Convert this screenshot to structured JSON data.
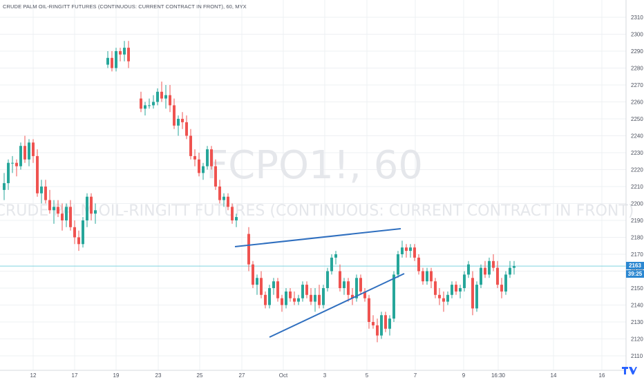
{
  "window": {
    "title": "CRUDE PALM OIL-RINGITT FUTURES (CONTINUOUS: CURRENT CONTRACT IN FRONT), 60, MYX"
  },
  "watermark": {
    "symbol": "FCPO1!, 60",
    "description": "CRUDE PALM OIL-RINGITT FUTURES (CONTINUOUS: CURRENT CONTRACT IN FRONT)"
  },
  "price_marker": {
    "price": "2163",
    "countdown": "39:25"
  },
  "colors": {
    "up": "#26a69a",
    "down": "#ef5350",
    "trendline": "#2f6fbf",
    "grid": "#eef0f3",
    "price_line": "#7fd3df",
    "price_tag": "#2b87d1"
  },
  "chart_data": {
    "type": "candlestick",
    "title": "CRUDE PALM OIL-RINGITT FUTURES (CONTINUOUS: CURRENT CONTRACT IN FRONT), 60, MYX",
    "symbol": "FCPO1!",
    "interval": "60",
    "exchange": "MYX",
    "ylim": [
      2104,
      2315
    ],
    "y_ticks": [
      2110,
      2120,
      2130,
      2140,
      2150,
      2160,
      2170,
      2180,
      2190,
      2200,
      2210,
      2220,
      2230,
      2240,
      2250,
      2260,
      2270,
      2280,
      2290,
      2300,
      2310
    ],
    "x_ticks": [
      "12",
      "17",
      "19",
      "23",
      "25",
      "27",
      "Oct",
      "3",
      "5",
      "7",
      "9",
      "16:30",
      "14",
      "16",
      "16:30"
    ],
    "last_price": 2163,
    "grid": true,
    "candles": [
      {
        "o": 2208,
        "h": 2218,
        "l": 2202,
        "c": 2212
      },
      {
        "o": 2212,
        "h": 2226,
        "l": 2208,
        "c": 2224
      },
      {
        "o": 2224,
        "h": 2228,
        "l": 2218,
        "c": 2224
      },
      {
        "o": 2224,
        "h": 2226,
        "l": 2216,
        "c": 2222
      },
      {
        "o": 2222,
        "h": 2236,
        "l": 2220,
        "c": 2234
      },
      {
        "o": 2234,
        "h": 2240,
        "l": 2224,
        "c": 2226
      },
      {
        "o": 2226,
        "h": 2238,
        "l": 2222,
        "c": 2236
      },
      {
        "o": 2236,
        "h": 2238,
        "l": 2224,
        "c": 2228
      },
      {
        "o": 2228,
        "h": 2232,
        "l": 2204,
        "c": 2206
      },
      {
        "o": 2206,
        "h": 2214,
        "l": 2200,
        "c": 2210
      },
      {
        "o": 2210,
        "h": 2214,
        "l": 2200,
        "c": 2202
      },
      {
        "o": 2202,
        "h": 2208,
        "l": 2194,
        "c": 2196
      },
      {
        "o": 2196,
        "h": 2202,
        "l": 2188,
        "c": 2198
      },
      {
        "o": 2198,
        "h": 2202,
        "l": 2192,
        "c": 2194
      },
      {
        "o": 2194,
        "h": 2200,
        "l": 2184,
        "c": 2190
      },
      {
        "o": 2190,
        "h": 2200,
        "l": 2186,
        "c": 2198
      },
      {
        "o": 2198,
        "h": 2202,
        "l": 2184,
        "c": 2186
      },
      {
        "o": 2186,
        "h": 2190,
        "l": 2176,
        "c": 2180
      },
      {
        "o": 2180,
        "h": 2184,
        "l": 2172,
        "c": 2176
      },
      {
        "o": 2176,
        "h": 2192,
        "l": 2174,
        "c": 2190
      },
      {
        "o": 2190,
        "h": 2206,
        "l": 2186,
        "c": 2204
      },
      {
        "o": 2204,
        "h": 2206,
        "l": 2190,
        "c": 2194
      },
      {
        "o": 2194,
        "h": 2200,
        "l": 2188,
        "c": 2196
      },
      {
        "o": 2282,
        "h": 2290,
        "l": 2280,
        "c": 2286
      },
      {
        "o": 2286,
        "h": 2290,
        "l": 2278,
        "c": 2280
      },
      {
        "o": 2280,
        "h": 2292,
        "l": 2278,
        "c": 2290
      },
      {
        "o": 2290,
        "h": 2292,
        "l": 2284,
        "c": 2288
      },
      {
        "o": 2288,
        "h": 2296,
        "l": 2284,
        "c": 2292
      },
      {
        "o": 2292,
        "h": 2296,
        "l": 2280,
        "c": 2284
      },
      {
        "o": 2262,
        "h": 2266,
        "l": 2254,
        "c": 2256
      },
      {
        "o": 2256,
        "h": 2260,
        "l": 2252,
        "c": 2258
      },
      {
        "o": 2258,
        "h": 2262,
        "l": 2256,
        "c": 2258
      },
      {
        "o": 2258,
        "h": 2264,
        "l": 2256,
        "c": 2260
      },
      {
        "o": 2260,
        "h": 2268,
        "l": 2258,
        "c": 2266
      },
      {
        "o": 2266,
        "h": 2272,
        "l": 2260,
        "c": 2262
      },
      {
        "o": 2262,
        "h": 2270,
        "l": 2256,
        "c": 2264
      },
      {
        "o": 2264,
        "h": 2270,
        "l": 2254,
        "c": 2258
      },
      {
        "o": 2258,
        "h": 2262,
        "l": 2244,
        "c": 2246
      },
      {
        "o": 2246,
        "h": 2252,
        "l": 2240,
        "c": 2250
      },
      {
        "o": 2250,
        "h": 2254,
        "l": 2244,
        "c": 2248
      },
      {
        "o": 2248,
        "h": 2252,
        "l": 2238,
        "c": 2240
      },
      {
        "o": 2240,
        "h": 2244,
        "l": 2226,
        "c": 2228
      },
      {
        "o": 2228,
        "h": 2232,
        "l": 2222,
        "c": 2226
      },
      {
        "o": 2226,
        "h": 2230,
        "l": 2216,
        "c": 2218
      },
      {
        "o": 2218,
        "h": 2224,
        "l": 2214,
        "c": 2222
      },
      {
        "o": 2222,
        "h": 2234,
        "l": 2220,
        "c": 2232
      },
      {
        "o": 2232,
        "h": 2234,
        "l": 2220,
        "c": 2222
      },
      {
        "o": 2222,
        "h": 2226,
        "l": 2208,
        "c": 2210
      },
      {
        "o": 2210,
        "h": 2214,
        "l": 2200,
        "c": 2202
      },
      {
        "o": 2202,
        "h": 2206,
        "l": 2198,
        "c": 2204
      },
      {
        "o": 2204,
        "h": 2206,
        "l": 2196,
        "c": 2198
      },
      {
        "o": 2198,
        "h": 2200,
        "l": 2188,
        "c": 2190
      },
      {
        "o": 2190,
        "h": 2194,
        "l": 2186,
        "c": 2192
      },
      {
        "o": 2182,
        "h": 2186,
        "l": 2160,
        "c": 2164
      },
      {
        "o": 2164,
        "h": 2166,
        "l": 2150,
        "c": 2152
      },
      {
        "o": 2152,
        "h": 2158,
        "l": 2146,
        "c": 2156
      },
      {
        "o": 2156,
        "h": 2160,
        "l": 2144,
        "c": 2146
      },
      {
        "o": 2146,
        "h": 2148,
        "l": 2138,
        "c": 2140
      },
      {
        "o": 2140,
        "h": 2152,
        "l": 2138,
        "c": 2150
      },
      {
        "o": 2150,
        "h": 2156,
        "l": 2146,
        "c": 2154
      },
      {
        "o": 2154,
        "h": 2156,
        "l": 2142,
        "c": 2144
      },
      {
        "o": 2144,
        "h": 2146,
        "l": 2136,
        "c": 2140
      },
      {
        "o": 2140,
        "h": 2150,
        "l": 2138,
        "c": 2148
      },
      {
        "o": 2148,
        "h": 2150,
        "l": 2142,
        "c": 2144
      },
      {
        "o": 2144,
        "h": 2148,
        "l": 2140,
        "c": 2142
      },
      {
        "o": 2142,
        "h": 2146,
        "l": 2140,
        "c": 2144
      },
      {
        "o": 2144,
        "h": 2154,
        "l": 2142,
        "c": 2152
      },
      {
        "o": 2152,
        "h": 2154,
        "l": 2144,
        "c": 2146
      },
      {
        "o": 2146,
        "h": 2150,
        "l": 2140,
        "c": 2142
      },
      {
        "o": 2142,
        "h": 2150,
        "l": 2136,
        "c": 2146
      },
      {
        "o": 2146,
        "h": 2152,
        "l": 2138,
        "c": 2140
      },
      {
        "o": 2140,
        "h": 2152,
        "l": 2138,
        "c": 2150
      },
      {
        "o": 2150,
        "h": 2162,
        "l": 2148,
        "c": 2160
      },
      {
        "o": 2160,
        "h": 2170,
        "l": 2158,
        "c": 2168
      },
      {
        "o": 2168,
        "h": 2172,
        "l": 2164,
        "c": 2170
      },
      {
        "o": 2160,
        "h": 2164,
        "l": 2148,
        "c": 2150
      },
      {
        "o": 2150,
        "h": 2156,
        "l": 2146,
        "c": 2154
      },
      {
        "o": 2154,
        "h": 2156,
        "l": 2142,
        "c": 2146
      },
      {
        "o": 2146,
        "h": 2150,
        "l": 2140,
        "c": 2144
      },
      {
        "o": 2144,
        "h": 2158,
        "l": 2142,
        "c": 2156
      },
      {
        "o": 2156,
        "h": 2158,
        "l": 2146,
        "c": 2148
      },
      {
        "o": 2148,
        "h": 2150,
        "l": 2142,
        "c": 2144
      },
      {
        "o": 2144,
        "h": 2146,
        "l": 2126,
        "c": 2130
      },
      {
        "o": 2130,
        "h": 2134,
        "l": 2126,
        "c": 2128
      },
      {
        "o": 2128,
        "h": 2132,
        "l": 2118,
        "c": 2122
      },
      {
        "o": 2122,
        "h": 2136,
        "l": 2120,
        "c": 2134
      },
      {
        "o": 2134,
        "h": 2136,
        "l": 2124,
        "c": 2126
      },
      {
        "o": 2126,
        "h": 2134,
        "l": 2122,
        "c": 2132
      },
      {
        "o": 2132,
        "h": 2160,
        "l": 2130,
        "c": 2158
      },
      {
        "o": 2158,
        "h": 2172,
        "l": 2156,
        "c": 2170
      },
      {
        "o": 2170,
        "h": 2178,
        "l": 2168,
        "c": 2174
      },
      {
        "o": 2174,
        "h": 2176,
        "l": 2168,
        "c": 2172
      },
      {
        "o": 2172,
        "h": 2176,
        "l": 2168,
        "c": 2174
      },
      {
        "o": 2174,
        "h": 2176,
        "l": 2166,
        "c": 2168
      },
      {
        "o": 2168,
        "h": 2170,
        "l": 2158,
        "c": 2160
      },
      {
        "o": 2160,
        "h": 2162,
        "l": 2152,
        "c": 2154
      },
      {
        "o": 2154,
        "h": 2162,
        "l": 2152,
        "c": 2160
      },
      {
        "o": 2160,
        "h": 2162,
        "l": 2150,
        "c": 2154
      },
      {
        "o": 2154,
        "h": 2156,
        "l": 2144,
        "c": 2146
      },
      {
        "o": 2146,
        "h": 2150,
        "l": 2140,
        "c": 2144
      },
      {
        "o": 2144,
        "h": 2148,
        "l": 2136,
        "c": 2142
      },
      {
        "o": 2142,
        "h": 2148,
        "l": 2140,
        "c": 2146
      },
      {
        "o": 2146,
        "h": 2154,
        "l": 2144,
        "c": 2152
      },
      {
        "o": 2152,
        "h": 2154,
        "l": 2146,
        "c": 2148
      },
      {
        "o": 2148,
        "h": 2152,
        "l": 2144,
        "c": 2150
      },
      {
        "o": 2150,
        "h": 2160,
        "l": 2148,
        "c": 2158
      },
      {
        "o": 2158,
        "h": 2166,
        "l": 2156,
        "c": 2164
      },
      {
        "o": 2156,
        "h": 2160,
        "l": 2134,
        "c": 2138
      },
      {
        "o": 2138,
        "h": 2154,
        "l": 2136,
        "c": 2152
      },
      {
        "o": 2152,
        "h": 2164,
        "l": 2150,
        "c": 2162
      },
      {
        "o": 2162,
        "h": 2166,
        "l": 2156,
        "c": 2158
      },
      {
        "o": 2158,
        "h": 2168,
        "l": 2156,
        "c": 2166
      },
      {
        "o": 2166,
        "h": 2170,
        "l": 2160,
        "c": 2162
      },
      {
        "o": 2162,
        "h": 2166,
        "l": 2150,
        "c": 2152
      },
      {
        "o": 2152,
        "h": 2156,
        "l": 2144,
        "c": 2148
      },
      {
        "o": 2148,
        "h": 2160,
        "l": 2146,
        "c": 2158
      },
      {
        "o": 2158,
        "h": 2166,
        "l": 2156,
        "c": 2162
      },
      {
        "o": 2162,
        "h": 2166,
        "l": 2158,
        "c": 2163
      }
    ],
    "annotations": [
      {
        "type": "trendline",
        "from": {
          "bar": 60,
          "price": 2173
        },
        "to": {
          "bar": 103,
          "price": 2183
        }
      },
      {
        "type": "trendline",
        "from": {
          "bar": 69,
          "price": 2119
        },
        "to": {
          "bar": 103,
          "price": 2157
        }
      }
    ]
  }
}
